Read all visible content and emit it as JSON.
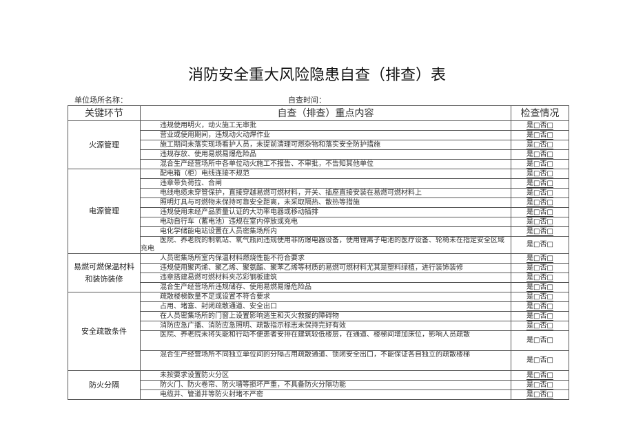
{
  "title": "消防安全重大风险隐患自查（排查）表",
  "unit_label": "单位场所名称：",
  "time_label": "自查时间：",
  "headers": [
    "关键环节",
    "自查（排查）重点内容",
    "检查情况"
  ],
  "check_text": "是□否□",
  "sections": [
    {
      "name": "火源管理",
      "items": [
        "违规使用明火，动火施工无审批",
        "营业或使用期间，违规动火动焊作业",
        "施工期间未落实现场看护人员，未提前清理可燃杂物和落实安全防护措施",
        "违规存放、使用易燃易爆危险品",
        "混合生产经营场所中各单位动火施工不报告、不审批，不告知其他单位"
      ]
    },
    {
      "name": "电源管理",
      "items": [
        "配电箱（柜）电线连接不规范",
        "违章带负荷拉、合闸",
        "电线电缆未穿管保护，直接穿越易燃可燃材料，开关、插座直接安装在易燃可燃材料上",
        "照明灯具与可燃物未保持可靠安全距离，未采取隔热、散热等措施",
        "违规使用未经产品质量认证的大功率电器或移动插排",
        "电动自行车（蓄电池）违规在室内停放或充电",
        "电化学储能电站设置在人员密集场所内",
        "医院、养老院的制氧站、氧气瓶间违规使用非防爆电器设备，使用锂离子电池的医疗设备、轮椅未在指定安全区域充电"
      ]
    },
    {
      "name": "易燃可燃保温材料和装饰装修",
      "items": [
        "人员密集场所室内保温材料燃烧性能不符合要求",
        "违规使用聚丙烯、聚乙烯、聚氨酯、聚苯乙烯等材质的易燃可燃材料尤其是塑料绿植，进行装饰装修",
        "违章搭建易燃可燃材料夹芯彩钢板建筑",
        "混合生产经营场所违规储存、使用易燃易爆危险品"
      ]
    },
    {
      "name": "安全疏散条件",
      "items": [
        "疏散楼梯数量不足或设置不符合要求",
        "占用、堵塞、封闭疏散通道、安全出口",
        "在人员密集场所的门窗上设置影响逃生和灭火救援的障碍物",
        "消防应急广播、消防应急照明、疏散指示标志未保持完好有效",
        "医院、养老院未将失能和行动不便患者安排在建筑较低楼层，在通道、楼梯间增加床位，影响人员疏散",
        "混合生产经营场所不同独立单位间的分隔占用疏散通道、锁闭安全出口，不能保证各自独立的疏散楼梯"
      ]
    },
    {
      "name": "防火分隔",
      "items": [
        "未按要求设置防火分区",
        "防火门、防火卷帘、防火墙等损坏严重，不具备防火分隔功能",
        "电缆井、管道井等防火封堵不严密"
      ]
    }
  ]
}
